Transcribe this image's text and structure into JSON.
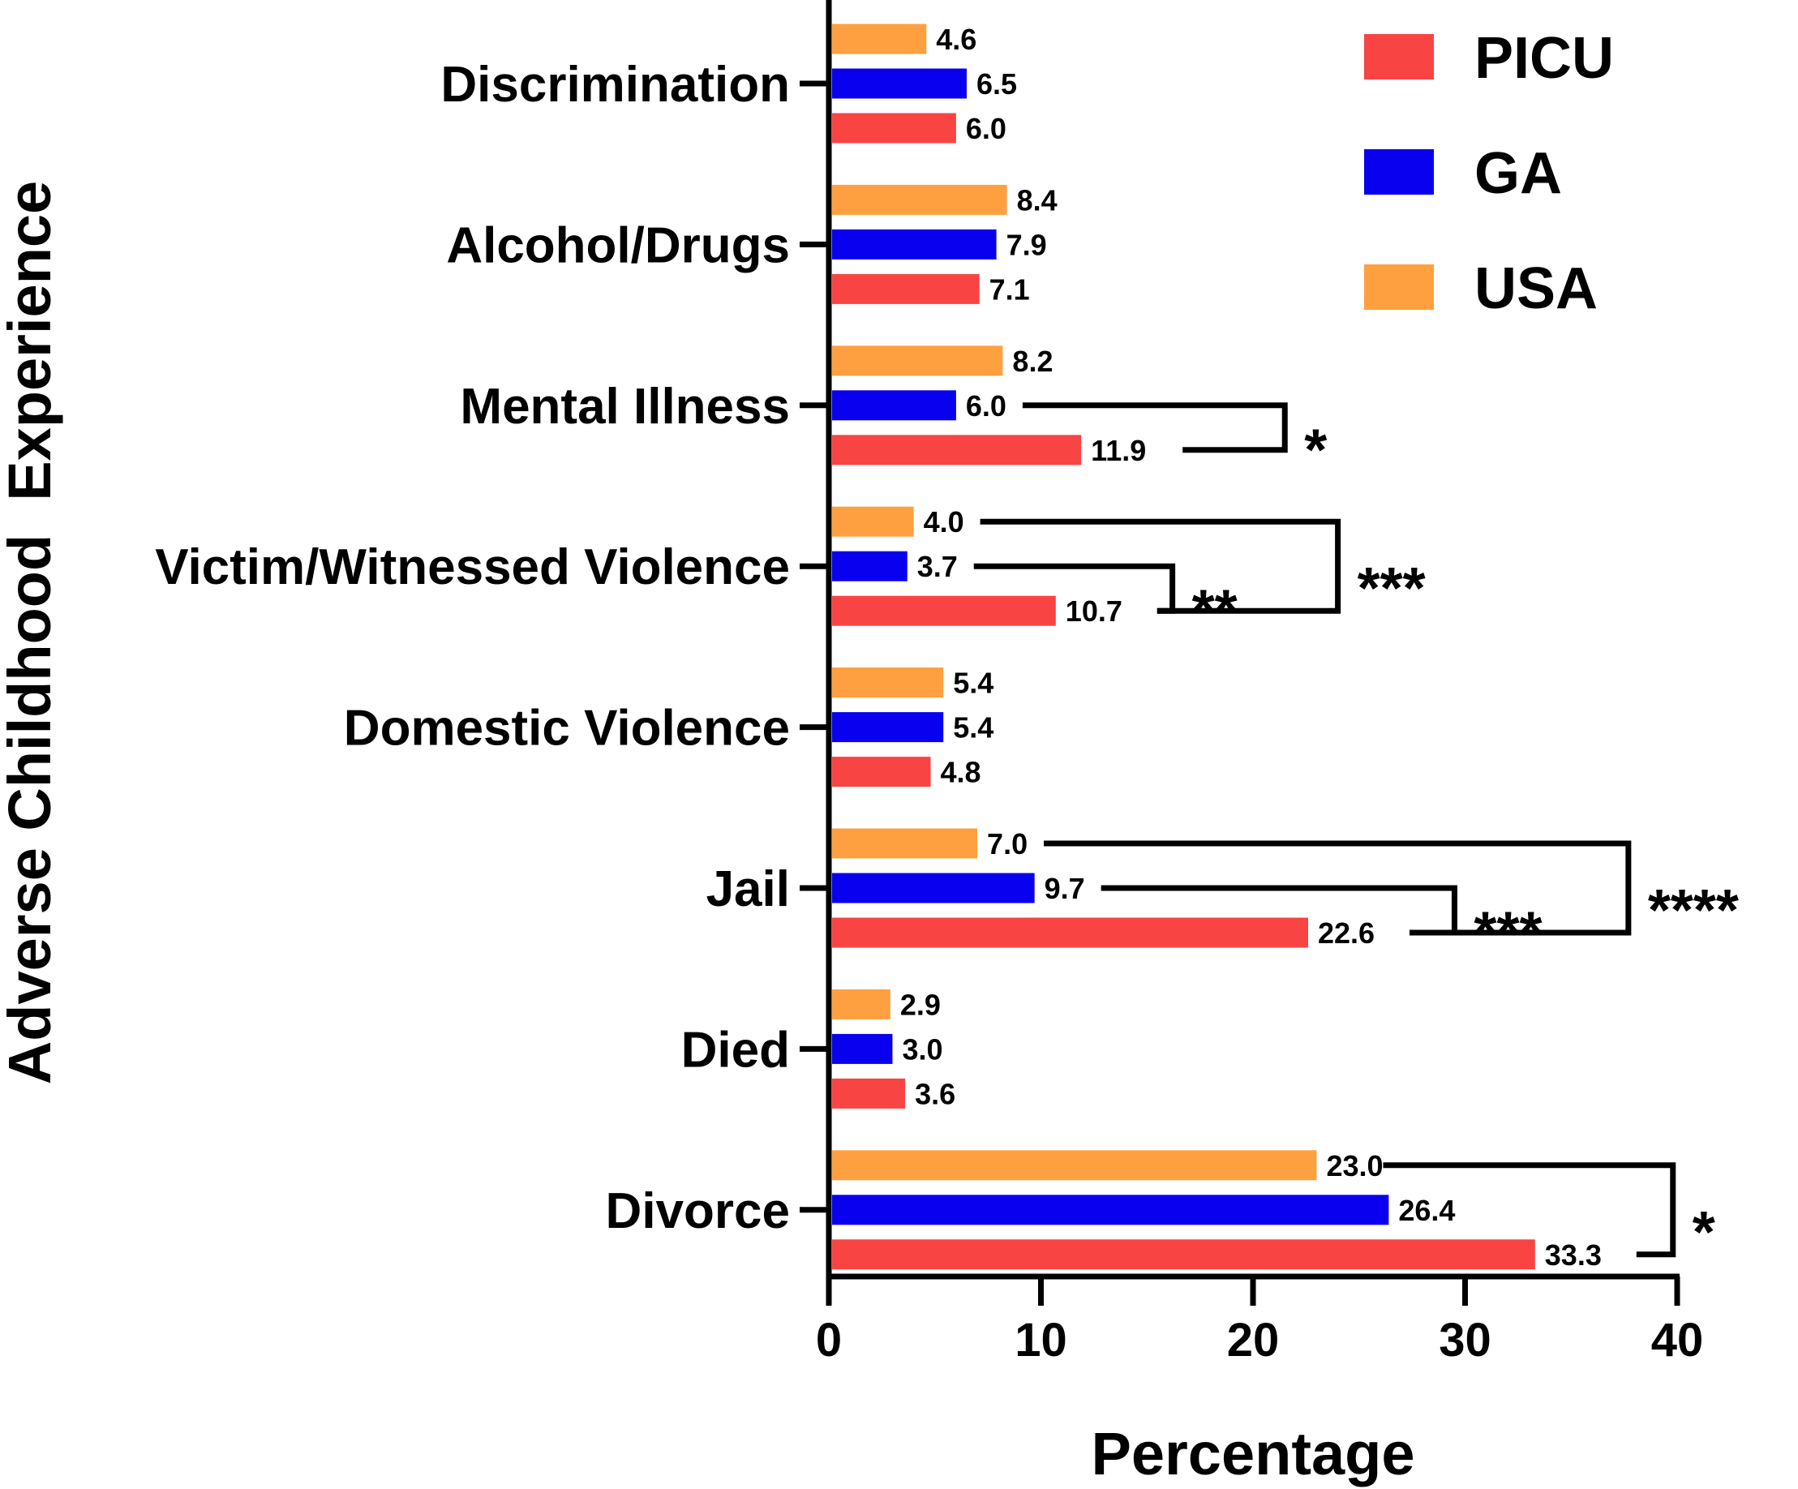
{
  "chart_data": {
    "type": "bar",
    "orientation": "horizontal",
    "title": "",
    "xlabel": "Percentage",
    "ylabel": "Adverse Childhood  Experience",
    "xlim": [
      0,
      40
    ],
    "xticks": [
      "0",
      "10",
      "20",
      "30",
      "40"
    ],
    "categories": [
      "Discrimination",
      "Alcohol/Drugs",
      "Mental Illness",
      "Victim/Witnessed Violence",
      "Domestic Violence",
      "Jail",
      "Died",
      "Divorce"
    ],
    "series": [
      {
        "name": "USA",
        "color": "#FFA040",
        "values": [
          4.6,
          8.4,
          8.2,
          4.0,
          5.4,
          7.0,
          2.9,
          23.0
        ],
        "labels": [
          "4.6",
          "8.4",
          "8.2",
          "4.0",
          "5.4",
          "7.0",
          "2.9",
          "23.0"
        ]
      },
      {
        "name": "GA",
        "color": "#0A00F0",
        "values": [
          6.5,
          7.9,
          6.0,
          3.7,
          5.4,
          9.7,
          3.0,
          26.4
        ],
        "labels": [
          "6.5",
          "7.9",
          "6.0",
          "3.7",
          "5.4",
          "9.7",
          "3.0",
          "26.4"
        ]
      },
      {
        "name": "PICU",
        "color": "#F94444",
        "values": [
          6.0,
          7.1,
          11.9,
          10.7,
          4.8,
          22.6,
          3.6,
          33.3
        ],
        "labels": [
          "6.0",
          "7.1",
          "11.9",
          "10.7",
          "4.8",
          "22.6",
          "3.6",
          "33.3"
        ]
      }
    ],
    "legend": {
      "position": "top-right",
      "entries": [
        {
          "name": "PICU",
          "color": "#F94444"
        },
        {
          "name": "GA",
          "color": "#0A00F0"
        },
        {
          "name": "USA",
          "color": "#FFA040"
        }
      ]
    },
    "significance": [
      {
        "category": "Mental Illness",
        "from": "GA",
        "to": "PICU",
        "bracket_x": 21.5,
        "label": "*"
      },
      {
        "category": "Victim/Witnessed Violence",
        "from": "GA",
        "to": "PICU",
        "bracket_x": 16.2,
        "label": "**"
      },
      {
        "category": "Victim/Witnessed Violence",
        "from": "USA",
        "to": "PICU",
        "bracket_x": 24.0,
        "label": "***"
      },
      {
        "category": "Jail",
        "from": "GA",
        "to": "PICU",
        "bracket_x": 29.5,
        "label": "***"
      },
      {
        "category": "Jail",
        "from": "USA",
        "to": "PICU",
        "bracket_x": 37.7,
        "label": "****"
      },
      {
        "category": "Divorce",
        "from": "USA",
        "to": "PICU",
        "bracket_x": 39.8,
        "label": "*"
      }
    ]
  }
}
